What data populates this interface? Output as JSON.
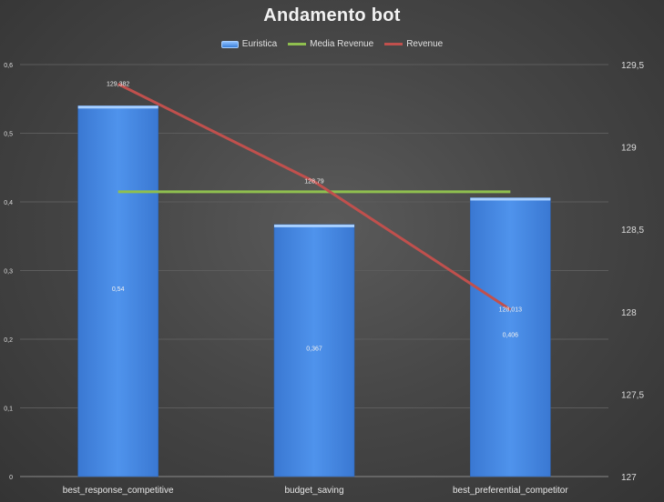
{
  "chart_data": {
    "type": "bar",
    "title": "Andamento bot",
    "categories": [
      "best_response_competitive",
      "budget_saving",
      "best_preferential_competitor"
    ],
    "series": [
      {
        "name": "Euristica",
        "type": "bar",
        "axis": "left",
        "color": "#4a8ae6",
        "values": [
          0.54,
          0.367,
          0.406
        ],
        "labels": [
          "0,54",
          "0,367",
          "0,406"
        ]
      },
      {
        "name": "Media Revenue",
        "type": "line",
        "axis": "right",
        "color": "#8fbf4f",
        "values": [
          128.728,
          128.728,
          128.728
        ]
      },
      {
        "name": "Revenue",
        "type": "line",
        "axis": "right",
        "color": "#c0504d",
        "values": [
          129.382,
          128.79,
          128.013
        ],
        "labels": [
          "129,382",
          "128,79",
          "128,013"
        ]
      }
    ],
    "y_left": {
      "min": 0,
      "max": 0.6,
      "ticks": [
        "0",
        "0,1",
        "0,2",
        "0,3",
        "0,4",
        "0,5",
        "0,6"
      ]
    },
    "y_right": {
      "min": 127,
      "max": 129.5,
      "ticks": [
        "127",
        "127,5",
        "128",
        "128,5",
        "129",
        "129,5"
      ]
    },
    "grid": true,
    "legend": "top-center"
  }
}
